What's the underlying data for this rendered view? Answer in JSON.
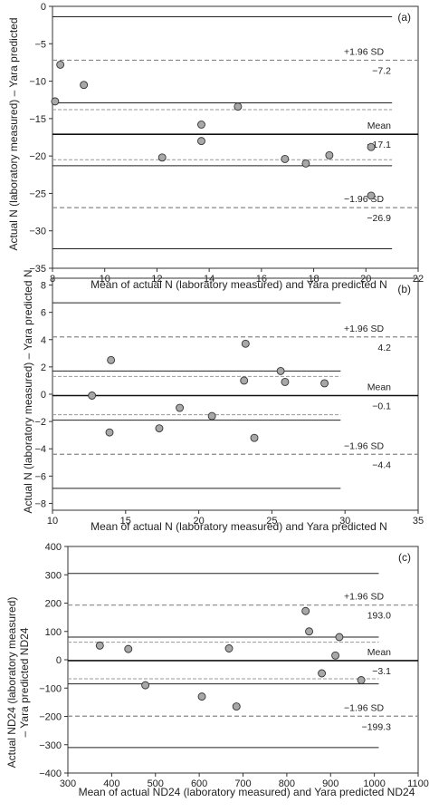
{
  "y_axis_top_label": "Actual N (laboratory measured) – Yara predicted",
  "y_axis_middle_label": "Actual N (laboratory measured) – Yara predicted N",
  "chart_data": [
    {
      "type": "scatter",
      "panel_label": "(a)",
      "xlabel": "Mean of actual N (laboratory measured) and Yara predicted N",
      "xlim": [
        8,
        22
      ],
      "ylim": [
        -35,
        0
      ],
      "xticks": [
        8,
        10,
        12,
        14,
        16,
        18,
        20,
        22
      ],
      "yticks": [
        0,
        -5,
        -10,
        -15,
        -20,
        -25,
        -30,
        -35
      ],
      "points": [
        {
          "x": 8.3,
          "y": -7.8
        },
        {
          "x": 9.2,
          "y": -10.5
        },
        {
          "x": 8.1,
          "y": -12.7
        },
        {
          "x": 15.1,
          "y": -13.4
        },
        {
          "x": 13.7,
          "y": -15.8
        },
        {
          "x": 13.7,
          "y": -18.0
        },
        {
          "x": 12.2,
          "y": -20.2
        },
        {
          "x": 16.9,
          "y": -20.4
        },
        {
          "x": 17.7,
          "y": -21.0
        },
        {
          "x": 18.6,
          "y": -19.9
        },
        {
          "x": 20.2,
          "y": -18.8
        },
        {
          "x": 20.2,
          "y": -25.3
        }
      ],
      "x_line_end": 21,
      "mean": -17.1,
      "upper_loa": -7.2,
      "lower_loa": -26.9,
      "mean_ci": [
        -21.3,
        -12.9
      ],
      "upper_ci": [
        -13.8,
        -1.4
      ],
      "lower_ci": [
        -32.4,
        -20.5
      ],
      "labels": {
        "upper_label": "+1.96 SD",
        "upper_value": "−7.2",
        "mean_label": "Mean",
        "mean_value": "−17.1",
        "lower_label": "−1.96 SD",
        "lower_value": "−26.9"
      }
    },
    {
      "type": "scatter",
      "panel_label": "(b)",
      "xlabel": "Mean of actual N (laboratory measured) and Yara predicted N",
      "xlim": [
        10,
        35
      ],
      "ylim": [
        -8.5,
        8.5
      ],
      "xticks": [
        10,
        15,
        20,
        25,
        30,
        35
      ],
      "yticks": [
        8,
        6,
        4,
        2,
        0,
        -2,
        -4,
        -6,
        -8
      ],
      "points": [
        {
          "x": 14.0,
          "y": 2.5
        },
        {
          "x": 23.2,
          "y": 3.7
        },
        {
          "x": 25.6,
          "y": 1.7
        },
        {
          "x": 25.9,
          "y": 0.9
        },
        {
          "x": 23.1,
          "y": 1.0
        },
        {
          "x": 28.6,
          "y": 0.8
        },
        {
          "x": 12.7,
          "y": -0.1
        },
        {
          "x": 18.7,
          "y": -1.0
        },
        {
          "x": 20.9,
          "y": -1.6
        },
        {
          "x": 17.3,
          "y": -2.5
        },
        {
          "x": 13.9,
          "y": -2.8
        },
        {
          "x": 23.8,
          "y": -3.2
        }
      ],
      "x_line_end": 29.7,
      "mean": -0.1,
      "upper_loa": 4.2,
      "lower_loa": -4.4,
      "mean_ci": [
        -1.9,
        1.7
      ],
      "upper_ci": [
        1.3,
        6.7
      ],
      "lower_ci": [
        -6.9,
        -1.5
      ],
      "labels": {
        "upper_label": "+1.96 SD",
        "upper_value": "4.2",
        "mean_label": "Mean",
        "mean_value": "−0.1",
        "lower_label": "−1.96 SD",
        "lower_value": "−4.4"
      }
    },
    {
      "type": "scatter",
      "panel_label": "(c)",
      "ylabel": "Actual ND24 (laboratory measured) – Yara predicted ND24",
      "xlabel": "Mean of actual ND24 (laboratory measured) and Yara predicted ND24",
      "xlim": [
        300,
        1100
      ],
      "ylim": [
        -400,
        400
      ],
      "xticks": [
        300,
        400,
        500,
        600,
        700,
        800,
        900,
        1000,
        1100
      ],
      "yticks": [
        400,
        300,
        200,
        100,
        0,
        -100,
        -200,
        -300,
        -400
      ],
      "points": [
        {
          "x": 843,
          "y": 172
        },
        {
          "x": 851,
          "y": 100
        },
        {
          "x": 920,
          "y": 80
        },
        {
          "x": 373,
          "y": 50
        },
        {
          "x": 438,
          "y": 38
        },
        {
          "x": 668,
          "y": 40
        },
        {
          "x": 911,
          "y": 15
        },
        {
          "x": 880,
          "y": -48
        },
        {
          "x": 970,
          "y": -72
        },
        {
          "x": 477,
          "y": -90
        },
        {
          "x": 606,
          "y": -130
        },
        {
          "x": 685,
          "y": -165
        }
      ],
      "x_line_end": 1010,
      "mean": -3.1,
      "upper_loa": 193.0,
      "lower_loa": -199.3,
      "mean_ci": [
        -85,
        80
      ],
      "upper_ci": [
        62,
        305
      ],
      "lower_ci": [
        -310,
        -67
      ],
      "labels": {
        "upper_label": "+1.96 SD",
        "upper_value": "193.0",
        "mean_label": "Mean",
        "mean_value": "−3.1",
        "lower_label": "−1.96 SD",
        "lower_value": "−199.3"
      }
    }
  ]
}
